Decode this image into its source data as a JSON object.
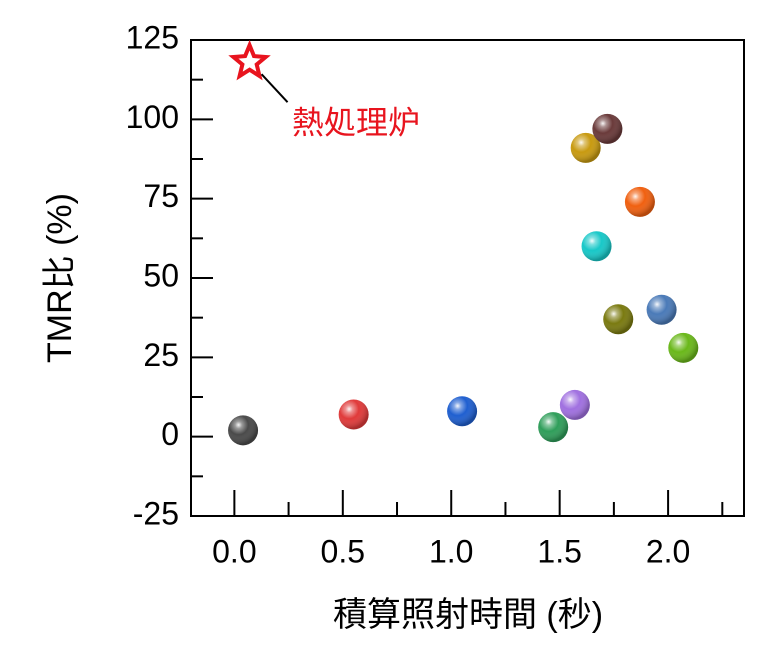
{
  "chart_data": {
    "type": "scatter",
    "xlabel": "積算照射時間 (秒)",
    "ylabel": "TMR比 (%)",
    "xlim": [
      -0.2,
      2.35
    ],
    "ylim": [
      -25,
      125
    ],
    "x_ticks": [
      0.0,
      0.5,
      1.0,
      1.5,
      2.0
    ],
    "x_tick_labels": [
      "0.0",
      "0.5",
      "1.0",
      "1.5",
      "2.0"
    ],
    "y_ticks": [
      -25,
      0,
      25,
      50,
      75,
      100,
      125
    ],
    "y_tick_labels": [
      "-25",
      "0",
      "25",
      "50",
      "75",
      "100",
      "125"
    ],
    "grid": false,
    "points": [
      {
        "x": 0.04,
        "y": 2,
        "color": "#4a4a4a"
      },
      {
        "x": 0.55,
        "y": 7,
        "color": "#e03a3a"
      },
      {
        "x": 1.05,
        "y": 8,
        "color": "#1f5fd0"
      },
      {
        "x": 1.47,
        "y": 3,
        "color": "#2f9e5a"
      },
      {
        "x": 1.57,
        "y": 10,
        "color": "#a070e0"
      },
      {
        "x": 1.62,
        "y": 91,
        "color": "#c89a10"
      },
      {
        "x": 1.67,
        "y": 60,
        "color": "#18c8c8"
      },
      {
        "x": 1.72,
        "y": 97,
        "color": "#6a3a3a"
      },
      {
        "x": 1.77,
        "y": 37,
        "color": "#7a7a10"
      },
      {
        "x": 1.87,
        "y": 74,
        "color": "#f06010"
      },
      {
        "x": 1.97,
        "y": 40,
        "color": "#4a7ab8"
      },
      {
        "x": 2.07,
        "y": 28,
        "color": "#6ab81a"
      }
    ],
    "reference_point": {
      "x": 0.07,
      "y": 118,
      "marker": "star",
      "color": "#e8141e",
      "label": "熱処理炉"
    }
  }
}
